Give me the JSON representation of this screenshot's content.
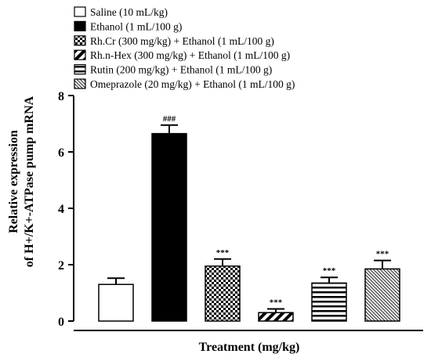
{
  "chart_data": {
    "type": "bar",
    "ylabel_line1": "Relative expression",
    "ylabel_line2": "of H+/K+-ATPase pump mRNA",
    "xlabel": "Treatment (mg/kg)",
    "ylim": [
      0,
      8
    ],
    "yticks": [
      0,
      2,
      4,
      6,
      8
    ],
    "legend_position": "top",
    "series": [
      {
        "name": "Saline (10 mL/kg)",
        "value": 1.3,
        "error": 0.22,
        "pattern": "none",
        "sig": ""
      },
      {
        "name": "Ethanol (1 mL/100 g)",
        "value": 6.65,
        "error": 0.3,
        "pattern": "solid",
        "sig": "###"
      },
      {
        "name": "Rh.Cr (300 mg/kg) + Ethanol (1 mL/100 g)",
        "value": 1.95,
        "error": 0.25,
        "pattern": "checker",
        "sig": "***"
      },
      {
        "name": "Rh.n-Hex (300 mg/kg) + Ethanol (1 mL/100 g)",
        "value": 0.3,
        "error": 0.13,
        "pattern": "diagonal",
        "sig": "***"
      },
      {
        "name": "Rutin (200 mg/kg) + Ethanol (1 mL/100 g)",
        "value": 1.35,
        "error": 0.2,
        "pattern": "horizontal",
        "sig": "***"
      },
      {
        "name": "Omeprazole (20 mg/kg) + Ethanol (1 mL/100 g)",
        "value": 1.85,
        "error": 0.3,
        "pattern": "fine-diagonal",
        "sig": "***"
      }
    ]
  }
}
